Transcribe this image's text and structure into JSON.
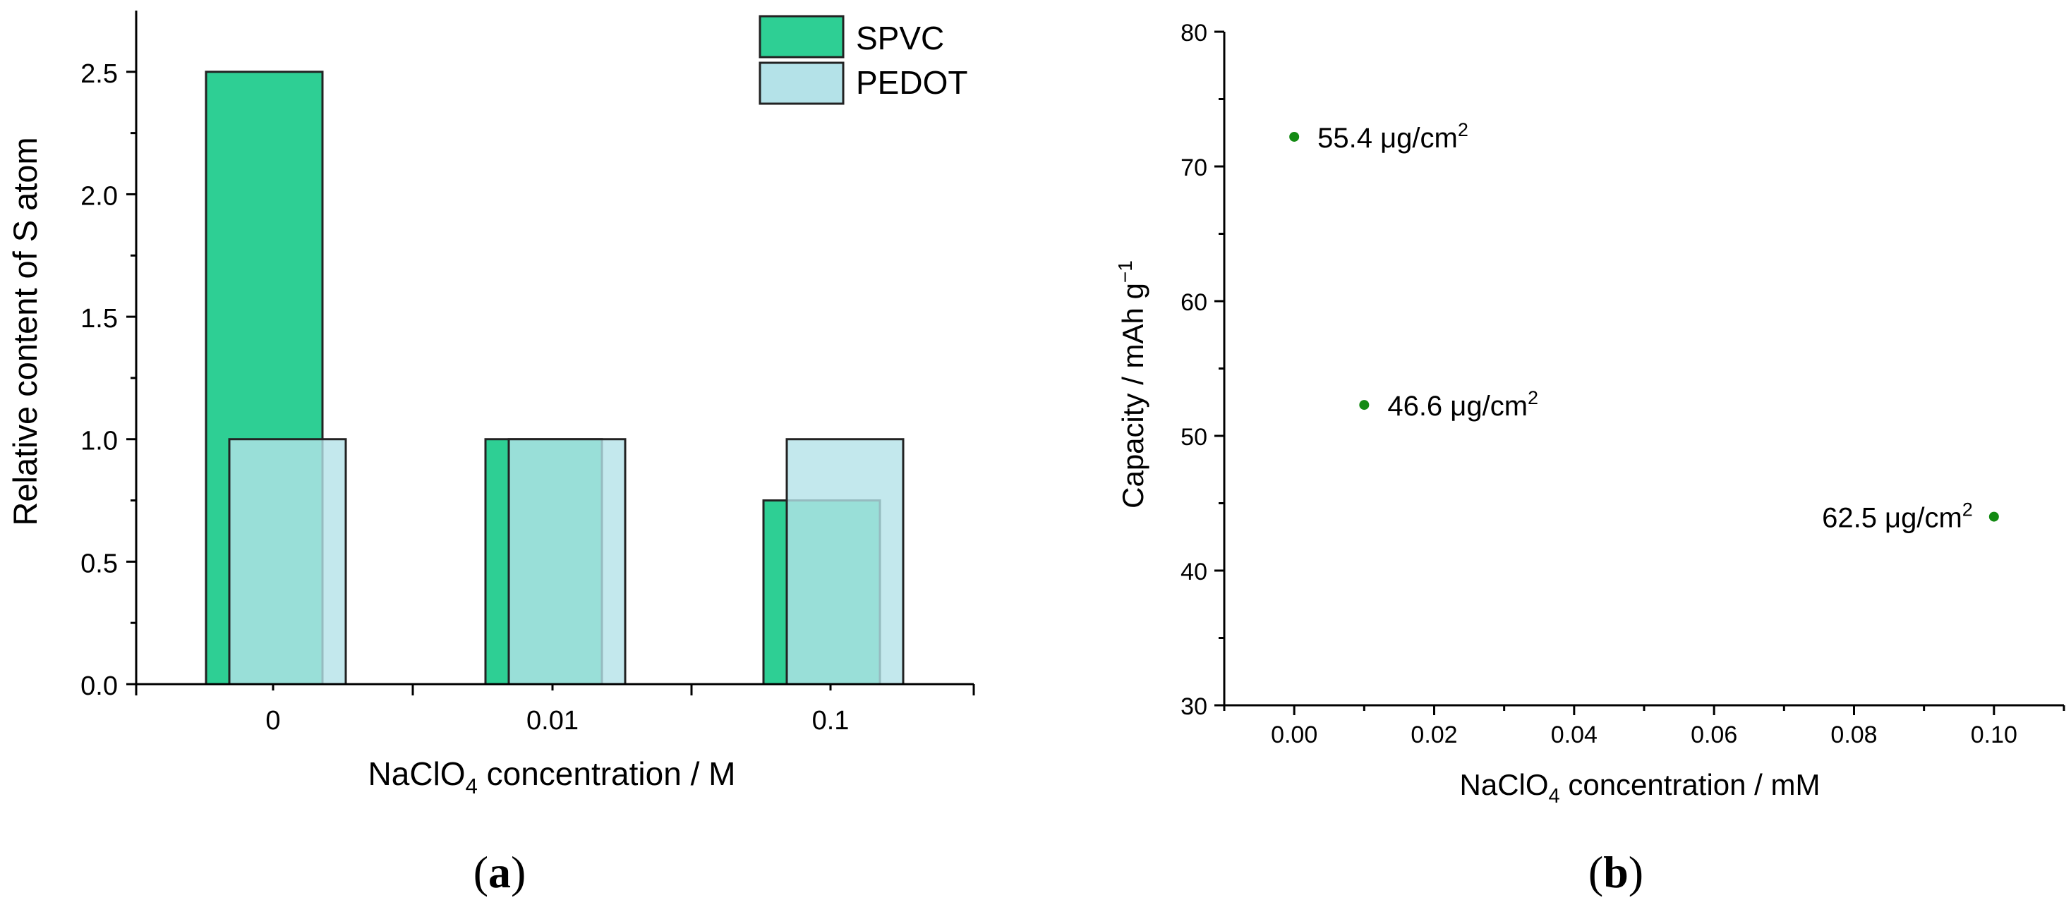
{
  "chart_data": [
    {
      "type": "bar",
      "panel_label": "a",
      "ylabel": "Relative content of S atom",
      "xlabel_parts": [
        "NaClO",
        "4",
        " concentration / M"
      ],
      "categories": [
        "0",
        "0.01",
        "0.1"
      ],
      "yticks": [
        "0.0",
        "0.5",
        "1.0",
        "1.5",
        "2.0",
        "2.5"
      ],
      "ylim": [
        0,
        2.75
      ],
      "legend_position": "top-right",
      "series": [
        {
          "name": "SPVC",
          "values": [
            2.5,
            1.0,
            0.75
          ],
          "color": "#2ecf94"
        },
        {
          "name": "PEDOT",
          "values": [
            1.0,
            1.0,
            1.0
          ],
          "color": "#b4e2e8",
          "opacity": 0.8
        }
      ]
    },
    {
      "type": "scatter",
      "panel_label": "b",
      "ylabel_parts": [
        "Capacity / mAh g",
        "−1"
      ],
      "xlabel_parts": [
        "NaClO",
        "4",
        " concentration / mM"
      ],
      "xticks": [
        "0.00",
        "0.02",
        "0.04",
        "0.06",
        "0.08",
        "0.10"
      ],
      "yticks": [
        "30",
        "40",
        "50",
        "60",
        "70",
        "80"
      ],
      "xlim": [
        -0.01,
        0.11
      ],
      "ylim": [
        30,
        80
      ],
      "point_color": "#138a13",
      "points": [
        {
          "x": 0.0,
          "y": 72.2,
          "label": [
            "55.4 μg/cm",
            "2"
          ],
          "label_side": "right"
        },
        {
          "x": 0.01,
          "y": 52.3,
          "label": [
            "46.6 μg/cm",
            "2"
          ],
          "label_side": "right"
        },
        {
          "x": 0.1,
          "y": 44.0,
          "label": [
            "62.5 μg/cm",
            "2"
          ],
          "label_side": "left"
        }
      ]
    }
  ]
}
